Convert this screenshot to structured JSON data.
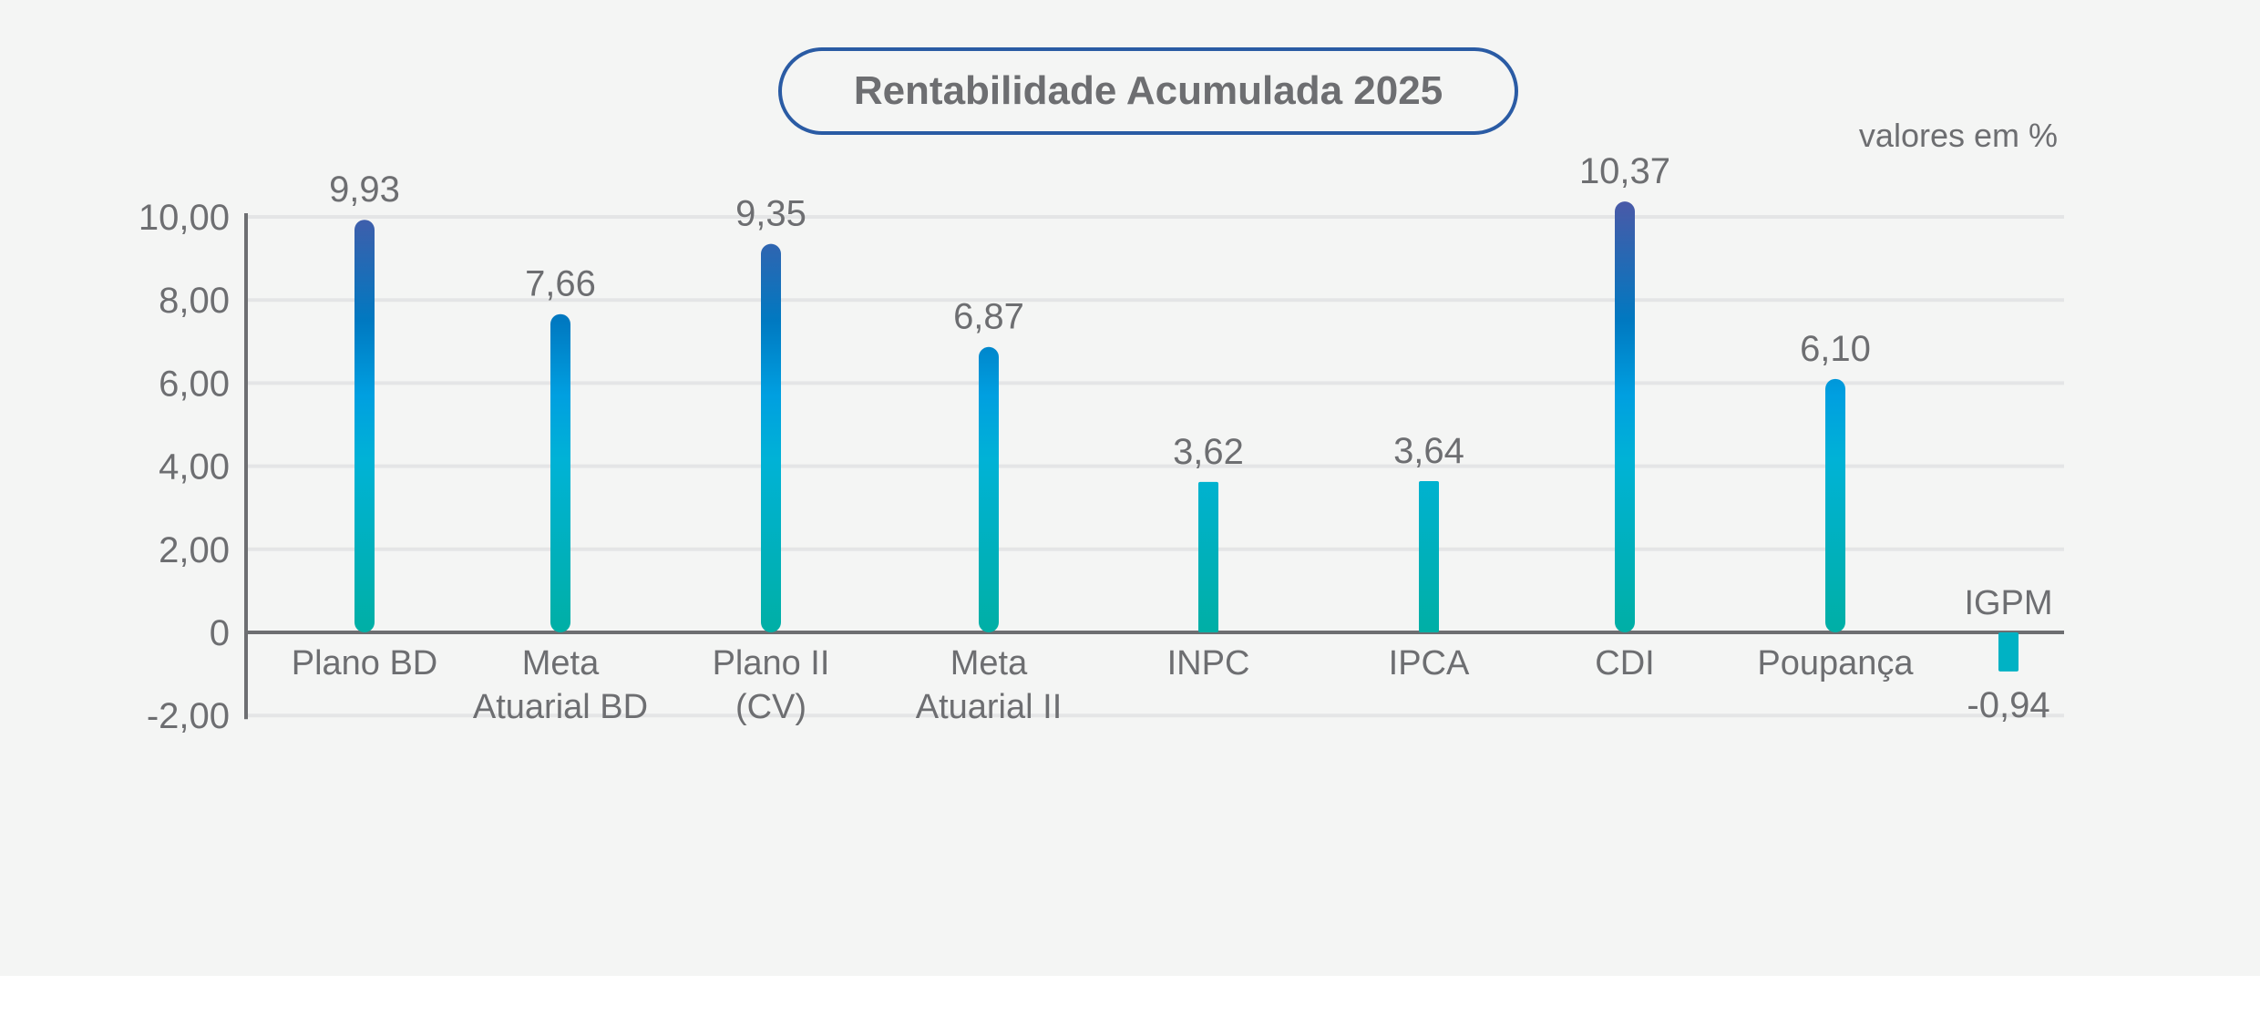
{
  "chart_data": {
    "type": "bar",
    "title": "Rentabilidade Acumulada 2025",
    "units_note": "valores em %",
    "categories": [
      [
        "Plano BD"
      ],
      [
        "Meta",
        "Atuarial BD"
      ],
      [
        "Plano II",
        "(CV)"
      ],
      [
        "Meta",
        "Atuarial II"
      ],
      [
        "INPC"
      ],
      [
        "IPCA"
      ],
      [
        "CDI"
      ],
      [
        "Poupança"
      ],
      [
        "IGPM"
      ]
    ],
    "values": [
      9.93,
      7.66,
      9.35,
      6.87,
      3.62,
      3.64,
      10.37,
      6.1,
      -0.94
    ],
    "value_labels": [
      "9,93",
      "7,66",
      "9,35",
      "6,87",
      "3,62",
      "3,64",
      "10,37",
      "6,10",
      "-0,94"
    ],
    "yticks": [
      10,
      8,
      6,
      4,
      2,
      0,
      -2
    ],
    "ytick_labels": [
      "10,00",
      "8,00",
      "6,00",
      "4,00",
      "2,00",
      "0",
      "-2,00"
    ],
    "ylim": [
      -2,
      10
    ],
    "grid": true,
    "xlabel": "",
    "ylabel": "",
    "colors": {
      "top": "#4a59a7",
      "mid1": "#0079c1",
      "mid2": "#009fe0",
      "mid3": "#00b2d6",
      "bottom": "#00afa5",
      "axis": "#6d6e71",
      "grid": "#e4e5e6",
      "title_border": "#2a5ba4"
    }
  }
}
